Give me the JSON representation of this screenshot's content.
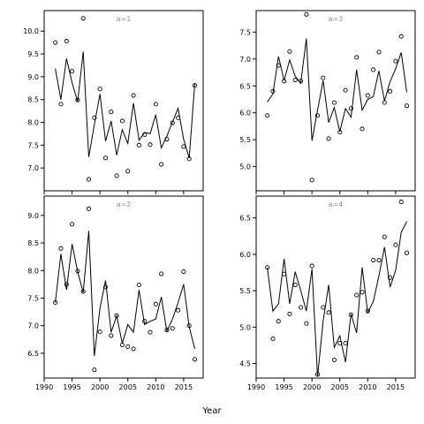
{
  "chart_data": {
    "type": "scatter",
    "xlabel": "Year",
    "x_ticks": [
      1990,
      1995,
      2000,
      2005,
      2010,
      2015
    ],
    "x_range": [
      1990,
      2018.5
    ],
    "colors": {
      "points": "#000000",
      "line": "#000000",
      "panel_title": "#8c8c8c",
      "frame": "#000000"
    },
    "grid": false,
    "panels": [
      {
        "title": "a=1",
        "y_range": [
          6.5,
          10.45
        ],
        "y_ticks": [
          7.0,
          7.5,
          8.0,
          8.5,
          9.0,
          9.5,
          10.0
        ],
        "y_tick_labels": [
          "7.0",
          "7.5",
          "8.0",
          "8.5",
          "9.0",
          "9.5",
          "10.0"
        ],
        "x_tick_labels": [],
        "points": {
          "x": [
            1992,
            1993,
            1994,
            1995,
            1996,
            1997,
            1998,
            1999,
            2000,
            2001,
            2002,
            2003,
            2004,
            2005,
            2006,
            2007,
            2008,
            2009,
            2010,
            2011,
            2012,
            2013,
            2014,
            2015,
            2016,
            2017
          ],
          "y": [
            9.75,
            8.4,
            9.78,
            9.12,
            8.49,
            10.28,
            6.75,
            8.1,
            8.73,
            7.22,
            8.23,
            6.83,
            8.03,
            6.93,
            8.59,
            7.5,
            7.73,
            7.51,
            8.4,
            7.08,
            7.63,
            7.99,
            8.1,
            7.47,
            7.2,
            8.81
          ]
        },
        "line": {
          "x": [
            1992,
            1993,
            1994,
            1995,
            1996,
            1997,
            1998,
            1999,
            2000,
            2001,
            2002,
            2003,
            2004,
            2005,
            2006,
            2007,
            2008,
            2009,
            2010,
            2011,
            2012,
            2013,
            2014,
            2015,
            2016,
            2017
          ],
          "y": [
            9.18,
            8.5,
            9.4,
            8.87,
            8.45,
            9.55,
            7.24,
            7.95,
            8.62,
            7.59,
            8.03,
            7.28,
            7.84,
            7.54,
            8.42,
            7.61,
            7.78,
            7.75,
            8.17,
            7.44,
            7.7,
            8.01,
            8.31,
            7.63,
            7.22,
            8.85
          ]
        }
      },
      {
        "title": "a=3",
        "y_range": [
          4.55,
          7.9
        ],
        "y_ticks": [
          5.0,
          5.5,
          6.0,
          6.5,
          7.0,
          7.5
        ],
        "y_tick_labels": [
          "5.0",
          "5.5",
          "6.0",
          "6.5",
          "7.0",
          "7.5"
        ],
        "x_tick_labels": [],
        "points": {
          "x": [
            1992,
            1993,
            1994,
            1995,
            1996,
            1997,
            1998,
            1999,
            2000,
            2001,
            2002,
            2003,
            2004,
            2005,
            2006,
            2007,
            2008,
            2009,
            2010,
            2011,
            2012,
            2013,
            2014,
            2015,
            2016,
            2017
          ],
          "y": [
            5.95,
            6.4,
            6.88,
            6.59,
            7.14,
            6.61,
            6.59,
            7.83,
            4.75,
            5.95,
            6.65,
            5.52,
            6.19,
            5.64,
            6.42,
            6.08,
            7.03,
            5.7,
            6.32,
            6.8,
            7.13,
            6.19,
            6.4,
            6.96,
            7.42,
            6.13
          ]
        },
        "line": {
          "x": [
            1992,
            1993,
            1994,
            1995,
            1996,
            1997,
            1998,
            1999,
            2000,
            2001,
            2002,
            2003,
            2004,
            2005,
            2006,
            2007,
            2008,
            2009,
            2010,
            2011,
            2012,
            2013,
            2014,
            2015,
            2016,
            2017
          ],
          "y": [
            6.2,
            6.35,
            7.05,
            6.6,
            6.98,
            6.68,
            6.55,
            7.38,
            5.48,
            6.05,
            6.6,
            5.82,
            6.1,
            5.65,
            6.08,
            5.92,
            6.8,
            6.05,
            6.25,
            6.3,
            6.78,
            6.22,
            6.58,
            6.82,
            7.12,
            6.38
          ]
        }
      },
      {
        "title": "a=2",
        "y_range": [
          6.05,
          9.35
        ],
        "y_ticks": [
          6.5,
          7.0,
          7.5,
          8.0,
          8.5,
          9.0
        ],
        "y_tick_labels": [
          "6.5",
          "7.0",
          "7.5",
          "8.0",
          "8.5",
          "9.0"
        ],
        "x_tick_labels": [
          "1990",
          "1995",
          "2000",
          "2005",
          "2010",
          "2015"
        ],
        "points": {
          "x": [
            1992,
            1993,
            1994,
            1995,
            1996,
            1997,
            1998,
            1999,
            2000,
            2001,
            2002,
            2003,
            2004,
            2005,
            2006,
            2007,
            2008,
            2009,
            2010,
            2011,
            2012,
            2013,
            2014,
            2015,
            2016,
            2017
          ],
          "y": [
            7.42,
            8.4,
            7.75,
            8.84,
            7.99,
            7.62,
            9.12,
            6.2,
            6.89,
            7.7,
            6.82,
            7.18,
            6.65,
            6.62,
            6.58,
            7.74,
            7.08,
            6.88,
            7.39,
            7.94,
            6.92,
            6.95,
            7.28,
            7.98,
            7.0,
            6.39
          ]
        },
        "line": {
          "x": [
            1992,
            1993,
            1994,
            1995,
            1996,
            1997,
            1998,
            1999,
            2000,
            2001,
            2002,
            2003,
            2004,
            2005,
            2006,
            2007,
            2008,
            2009,
            2010,
            2011,
            2012,
            2013,
            2014,
            2015,
            2016,
            2017
          ],
          "y": [
            7.42,
            8.3,
            7.65,
            8.48,
            7.98,
            7.6,
            8.72,
            6.45,
            7.32,
            7.82,
            6.88,
            7.18,
            6.68,
            7.02,
            6.88,
            7.65,
            7.02,
            7.08,
            7.12,
            7.52,
            6.9,
            7.12,
            7.42,
            7.75,
            6.98,
            6.58
          ]
        }
      },
      {
        "title": "a=4",
        "y_range": [
          4.3,
          6.8
        ],
        "y_ticks": [
          4.5,
          5.0,
          5.5,
          6.0,
          6.5
        ],
        "y_tick_labels": [
          "4.5",
          "5.0",
          "5.5",
          "6.0",
          "6.5"
        ],
        "x_tick_labels": [
          "1990",
          "1995",
          "2000",
          "2005",
          "2010",
          "2015"
        ],
        "points": {
          "x": [
            1992,
            1993,
            1994,
            1995,
            1996,
            1997,
            1998,
            1999,
            2000,
            2001,
            2002,
            2003,
            2004,
            2005,
            2006,
            2007,
            2008,
            2009,
            2010,
            2011,
            2012,
            2013,
            2014,
            2015,
            2016,
            2017
          ],
          "y": [
            5.82,
            4.84,
            5.08,
            5.73,
            5.18,
            5.58,
            5.27,
            5.05,
            5.84,
            4.35,
            5.27,
            5.2,
            4.55,
            4.78,
            4.78,
            5.17,
            5.44,
            5.48,
            5.22,
            5.92,
            5.92,
            6.24,
            5.68,
            6.13,
            6.72,
            6.02
          ]
        },
        "line": {
          "x": [
            1992,
            1993,
            1994,
            1995,
            1996,
            1997,
            1998,
            1999,
            2000,
            2001,
            2002,
            2003,
            2004,
            2005,
            2006,
            2007,
            2008,
            2009,
            2010,
            2011,
            2012,
            2013,
            2014,
            2015,
            2016,
            2017
          ],
          "y": [
            5.82,
            5.22,
            5.32,
            5.94,
            5.32,
            5.76,
            5.5,
            5.22,
            5.8,
            4.32,
            5.08,
            5.58,
            4.72,
            4.88,
            4.52,
            5.18,
            4.92,
            5.82,
            5.2,
            5.35,
            5.7,
            6.1,
            5.55,
            5.78,
            6.3,
            6.45
          ]
        }
      }
    ]
  }
}
